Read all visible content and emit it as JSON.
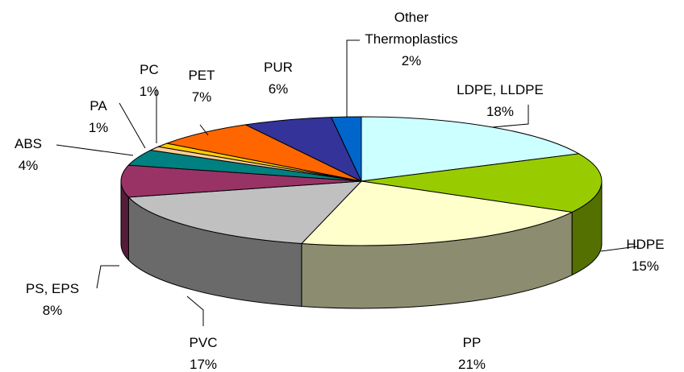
{
  "chart_data": {
    "type": "pie3d",
    "categories": [
      "LDPE, LLDPE",
      "HDPE",
      "PP",
      "PVC",
      "PS, EPS",
      "ABS",
      "PA",
      "PC",
      "PET",
      "PUR",
      "Other Thermoplastics"
    ],
    "values": [
      18,
      15,
      21,
      17,
      8,
      4,
      1,
      1,
      7,
      6,
      2
    ],
    "value_labels": [
      "18%",
      "15%",
      "21%",
      "17%",
      "8%",
      "4%",
      "1%",
      "1%",
      "7%",
      "6%",
      "2%"
    ],
    "colors": [
      "#ccffff",
      "#99cc00",
      "#ffffcc",
      "#c0c0c0",
      "#993366",
      "#008080",
      "#ffcc99",
      "#ffcc00",
      "#ff6600",
      "#333399",
      "#0066cc"
    ]
  }
}
